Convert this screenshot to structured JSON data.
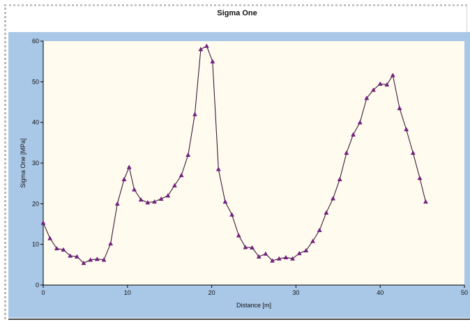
{
  "chart_data": {
    "type": "line",
    "title": "Sigma One",
    "xlabel": "Distance [m]",
    "ylabel": "Sigma One [MPa]",
    "xlim": [
      0,
      50
    ],
    "ylim": [
      0,
      60
    ],
    "xticks": [
      0,
      10,
      20,
      30,
      40,
      50
    ],
    "yticks": [
      0,
      10,
      20,
      30,
      40,
      50,
      60
    ],
    "grid": false,
    "legend": "none",
    "series": [
      {
        "color": "#7a1f86",
        "marker": "triangle",
        "points": [
          [
            0.0,
            15.3
          ],
          [
            0.8,
            11.5
          ],
          [
            1.6,
            9.0
          ],
          [
            2.4,
            8.7
          ],
          [
            3.2,
            7.2
          ],
          [
            4.0,
            7.0
          ],
          [
            4.8,
            5.4
          ],
          [
            5.6,
            6.2
          ],
          [
            6.4,
            6.4
          ],
          [
            7.2,
            6.2
          ],
          [
            8.0,
            10.2
          ],
          [
            8.8,
            20.0
          ],
          [
            9.6,
            26.0
          ],
          [
            10.2,
            29.0
          ],
          [
            10.8,
            23.5
          ],
          [
            11.6,
            21.0
          ],
          [
            12.4,
            20.3
          ],
          [
            13.2,
            20.5
          ],
          [
            14.0,
            21.2
          ],
          [
            14.8,
            22.0
          ],
          [
            15.6,
            24.5
          ],
          [
            16.4,
            27.0
          ],
          [
            17.2,
            32.0
          ],
          [
            18.0,
            42.0
          ],
          [
            18.7,
            58.0
          ],
          [
            19.4,
            58.8
          ],
          [
            20.1,
            55.0
          ],
          [
            20.8,
            28.5
          ],
          [
            21.6,
            20.5
          ],
          [
            22.4,
            17.3
          ],
          [
            23.2,
            12.2
          ],
          [
            24.0,
            9.3
          ],
          [
            24.8,
            9.2
          ],
          [
            25.6,
            7.0
          ],
          [
            26.4,
            7.7
          ],
          [
            27.2,
            6.0
          ],
          [
            28.0,
            6.5
          ],
          [
            28.8,
            6.8
          ],
          [
            29.6,
            6.5
          ],
          [
            30.4,
            7.8
          ],
          [
            31.2,
            8.5
          ],
          [
            32.0,
            10.8
          ],
          [
            32.8,
            13.5
          ],
          [
            33.6,
            17.8
          ],
          [
            34.4,
            21.3
          ],
          [
            35.2,
            26.0
          ],
          [
            36.0,
            32.5
          ],
          [
            36.8,
            37.0
          ],
          [
            37.6,
            40.0
          ],
          [
            38.4,
            46.0
          ],
          [
            39.2,
            48.0
          ],
          [
            40.0,
            49.5
          ],
          [
            40.8,
            49.3
          ],
          [
            41.5,
            51.6
          ],
          [
            42.3,
            43.5
          ],
          [
            43.1,
            38.3
          ],
          [
            43.9,
            32.5
          ],
          [
            44.7,
            26.3
          ],
          [
            45.4,
            20.5
          ]
        ]
      }
    ]
  }
}
